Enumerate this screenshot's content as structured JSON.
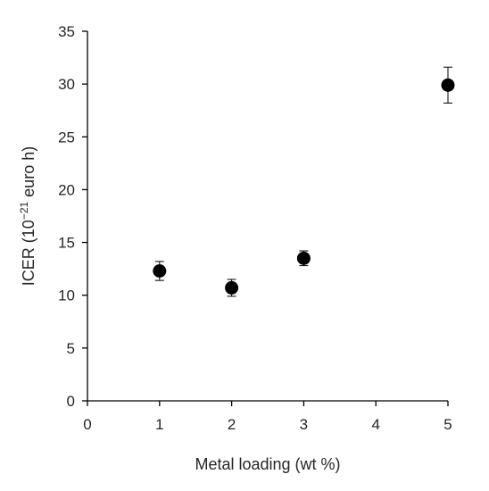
{
  "chart_data": {
    "type": "scatter",
    "xlabel": "Metal loading (wt %)",
    "ylabel": {
      "prefix": "ICER (10",
      "exponent": "−21",
      "suffix": " euro h)"
    },
    "xlim": [
      0,
      5
    ],
    "ylim": [
      0,
      35
    ],
    "xticks": [
      0,
      1,
      2,
      3,
      4,
      5
    ],
    "yticks": [
      0,
      5,
      10,
      15,
      20,
      25,
      30,
      35
    ],
    "grid": false,
    "legend": "none",
    "points": [
      {
        "x": 1,
        "y": 12.3,
        "err": 0.9
      },
      {
        "x": 2,
        "y": 10.7,
        "err": 0.8
      },
      {
        "x": 3,
        "y": 13.5,
        "err": 0.7
      },
      {
        "x": 5,
        "y": 29.9,
        "err": 1.7
      }
    ],
    "marker_color": "#000000",
    "axis_color": "#000000"
  }
}
